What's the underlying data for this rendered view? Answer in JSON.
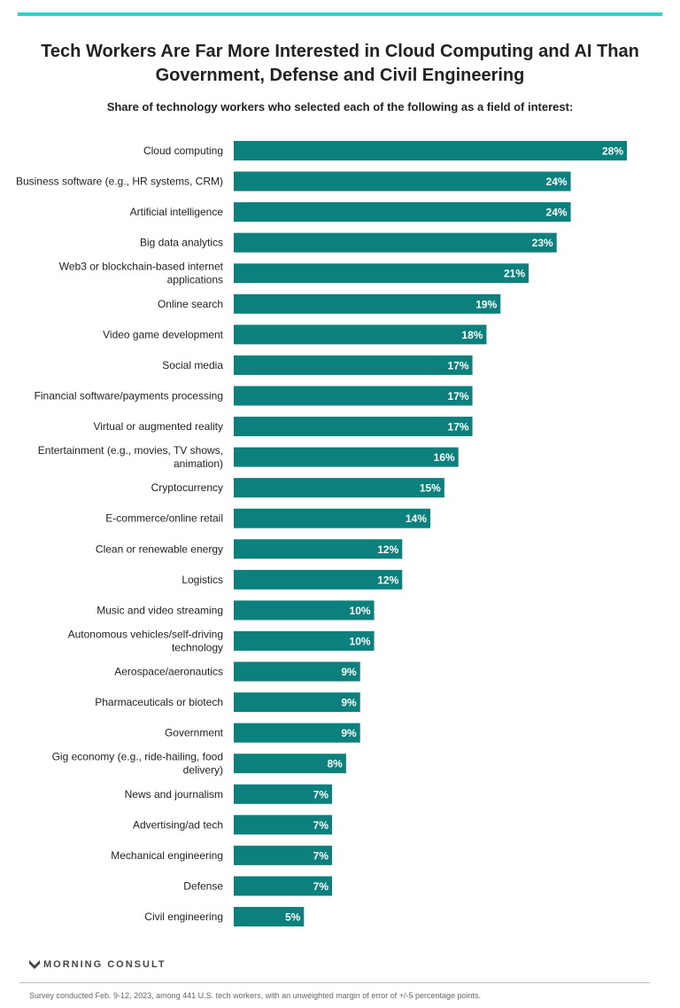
{
  "title_line1": "Tech Workers Are Far More Interested in Cloud Computing and AI Than",
  "title_line2": "Government, Defense and Civil Engineering",
  "subtitle": "Share of technology workers who selected each of the following as a field of interest:",
  "logo_text": "MORNING CONSULT",
  "footnote": "Survey conducted Feb. 9-12, 2023, among 441 U.S. tech workers, with an unweighted margin of error of +/-5 percentage points.",
  "colors": {
    "bar": "#0b807c",
    "accent": "#2fd3c8"
  },
  "chart_data": {
    "type": "bar",
    "orientation": "horizontal",
    "title": "Tech Workers Are Far More Interested in Cloud Computing and AI Than Government, Defense and Civil Engineering",
    "subtitle": "Share of technology workers who selected each of the following as a field of interest:",
    "unit": "%",
    "grid": false,
    "xlim": [
      0,
      28
    ],
    "categories": [
      [
        "Cloud computing"
      ],
      [
        "Business software (e.g., HR systems, CRM)"
      ],
      [
        "Artificial intelligence"
      ],
      [
        "Big data analytics"
      ],
      [
        "Web3 or blockchain-based internet",
        "applications"
      ],
      [
        "Online search"
      ],
      [
        "Video game development"
      ],
      [
        "Social media"
      ],
      [
        "Financial software/payments processing"
      ],
      [
        "Virtual or augmented reality"
      ],
      [
        "Entertainment (e.g., movies, TV shows,",
        "animation)"
      ],
      [
        "Cryptocurrency"
      ],
      [
        "E-commerce/online retail"
      ],
      [
        "Clean or renewable energy"
      ],
      [
        "Logistics"
      ],
      [
        "Music and video streaming"
      ],
      [
        "Autonomous vehicles/self-driving",
        "technology"
      ],
      [
        "Aerospace/aeronautics"
      ],
      [
        "Pharmaceuticals or biotech"
      ],
      [
        "Government"
      ],
      [
        "Gig economy (e.g., ride-hailing, food",
        "delivery)"
      ],
      [
        "News and journalism"
      ],
      [
        "Advertising/ad tech"
      ],
      [
        "Mechanical engineering"
      ],
      [
        "Defense"
      ],
      [
        "Civil engineering"
      ]
    ],
    "values": [
      28,
      24,
      24,
      23,
      21,
      19,
      18,
      17,
      17,
      17,
      16,
      15,
      14,
      12,
      12,
      10,
      10,
      9,
      9,
      9,
      8,
      7,
      7,
      7,
      7,
      5
    ],
    "data_labels": [
      "28%",
      "24%",
      "24%",
      "23%",
      "21%",
      "19%",
      "18%",
      "17%",
      "17%",
      "17%",
      "16%",
      "15%",
      "14%",
      "12%",
      "12%",
      "10%",
      "10%",
      "9%",
      "9%",
      "9%",
      "8%",
      "7%",
      "7%",
      "7%",
      "7%",
      "5%"
    ]
  }
}
